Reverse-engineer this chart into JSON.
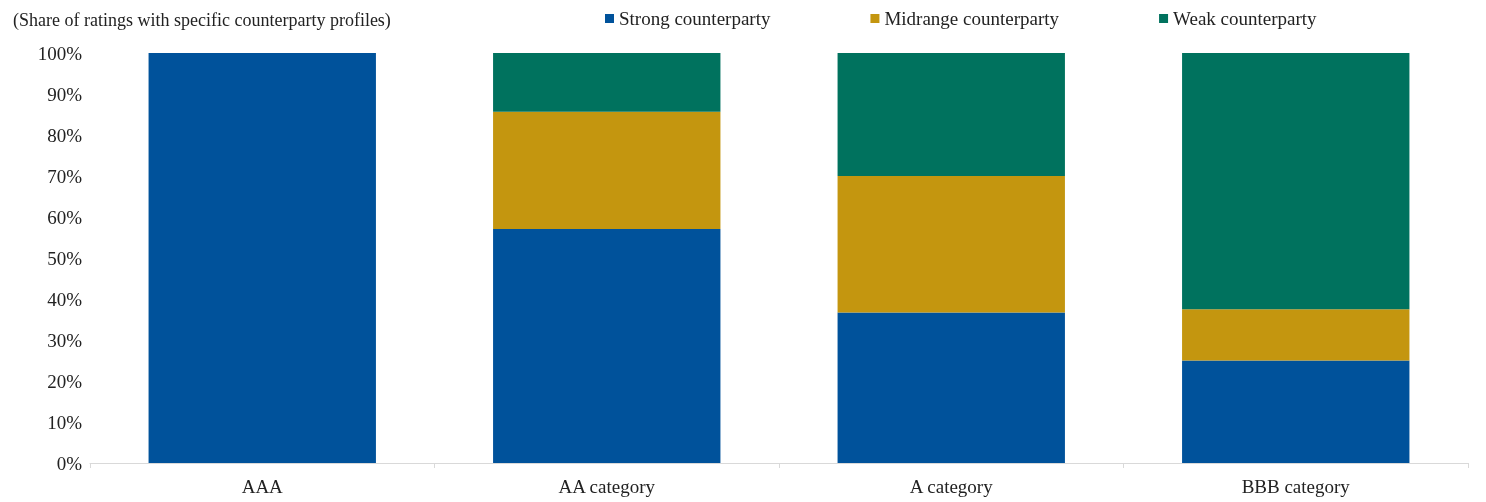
{
  "chart_data": {
    "type": "bar",
    "stacked": true,
    "title": "(Share of ratings with specific counterparty profiles)",
    "categories": [
      "AAA",
      "AA category",
      "A category",
      "BBB category"
    ],
    "series": [
      {
        "name": "Strong counterparty",
        "color": "#00529b",
        "values": [
          100,
          57.1,
          36.7,
          25
        ]
      },
      {
        "name": "Midrange counterparty",
        "color": "#c4960f",
        "values": [
          0,
          28.6,
          33.3,
          12.5
        ]
      },
      {
        "name": "Weak counterparty",
        "color": "#00725e",
        "values": [
          0,
          14.3,
          30,
          62.5
        ]
      }
    ],
    "ylim": [
      0,
      100
    ],
    "yticks": [
      {
        "value": 0,
        "label": "0%"
      },
      {
        "value": 10,
        "label": "10%"
      },
      {
        "value": 20,
        "label": "20%"
      },
      {
        "value": 30,
        "label": "30%"
      },
      {
        "value": 40,
        "label": "40%"
      },
      {
        "value": 50,
        "label": "50%"
      },
      {
        "value": 60,
        "label": "60%"
      },
      {
        "value": 70,
        "label": "70%"
      },
      {
        "value": 80,
        "label": "80%"
      },
      {
        "value": 90,
        "label": "90%"
      },
      {
        "value": 100,
        "label": "100%"
      }
    ],
    "grid": false,
    "legend": "top"
  }
}
